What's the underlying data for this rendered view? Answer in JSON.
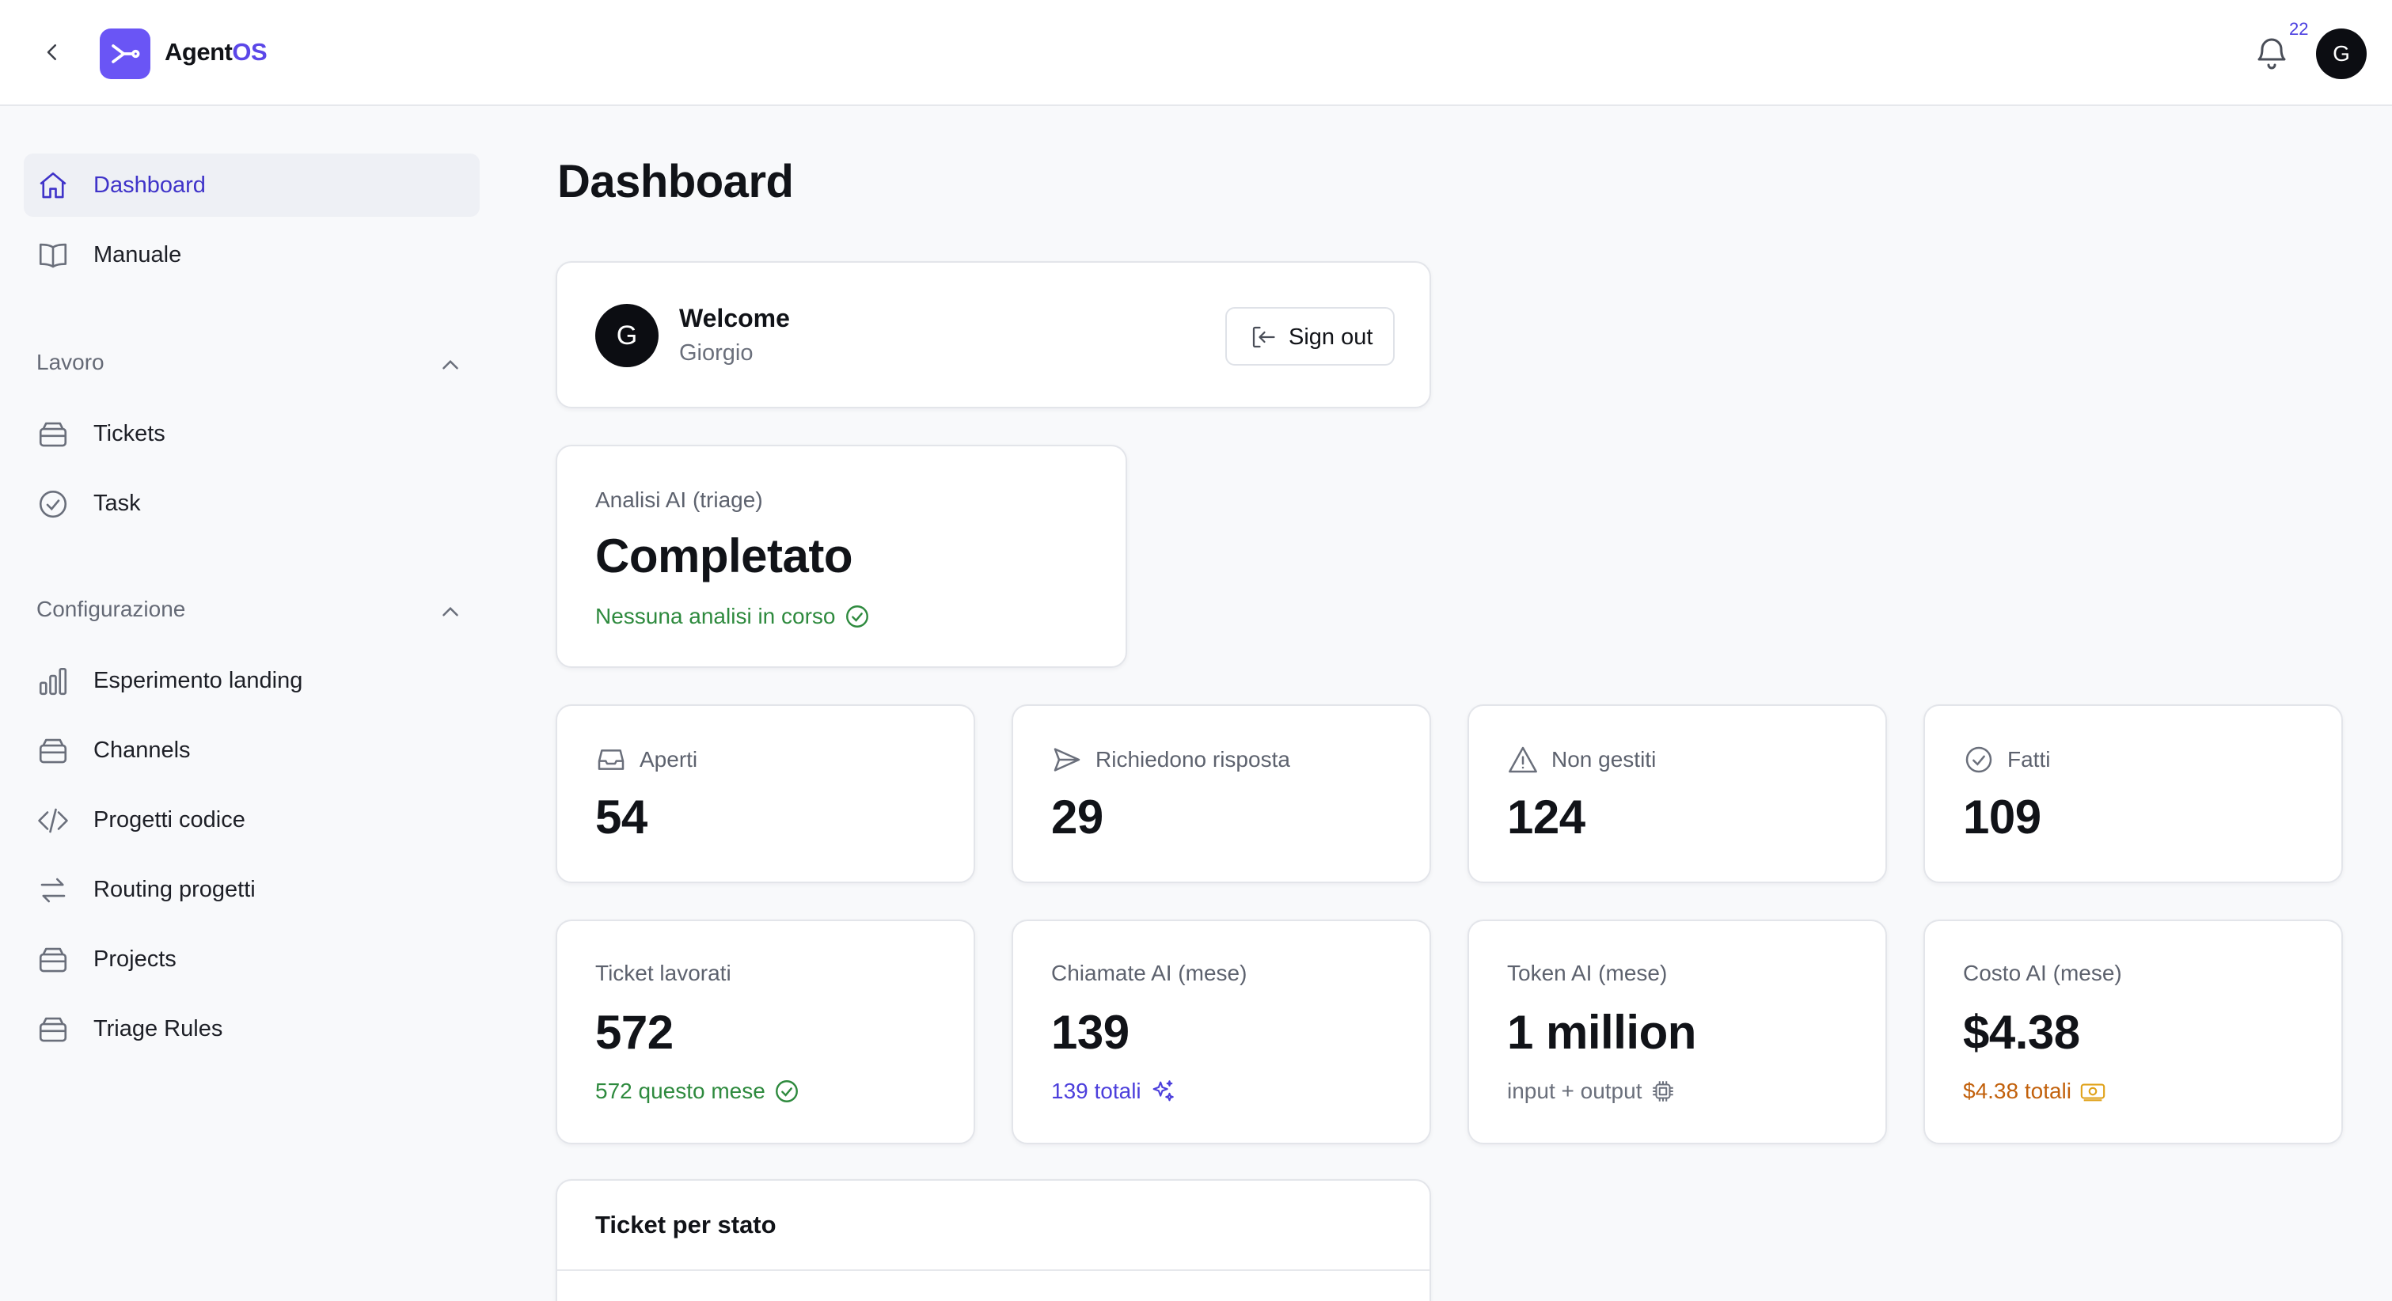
{
  "app": {
    "name_main": "Agent",
    "name_accent": "OS",
    "notifications_count": "22",
    "user_initial": "G"
  },
  "sidebar": {
    "top_items": [
      {
        "label": "Dashboard",
        "icon": "home-icon",
        "active": true
      },
      {
        "label": "Manuale",
        "icon": "book-icon",
        "active": false
      }
    ],
    "sections": [
      {
        "title": "Lavoro",
        "items": [
          {
            "label": "Tickets",
            "icon": "inbox-icon"
          },
          {
            "label": "Task",
            "icon": "check-circle-icon"
          }
        ]
      },
      {
        "title": "Configurazione",
        "items": [
          {
            "label": "Esperimento landing",
            "icon": "bar-chart-icon"
          },
          {
            "label": "Channels",
            "icon": "inbox-icon"
          },
          {
            "label": "Progetti codice",
            "icon": "code-icon"
          },
          {
            "label": "Routing progetti",
            "icon": "arrows-exchange-icon"
          },
          {
            "label": "Projects",
            "icon": "inbox-icon"
          },
          {
            "label": "Triage Rules",
            "icon": "inbox-icon"
          }
        ]
      }
    ]
  },
  "main": {
    "title": "Dashboard",
    "welcome": {
      "initial": "G",
      "title": "Welcome",
      "name": "Giorgio",
      "signout_label": "Sign out"
    },
    "triage": {
      "label": "Analisi AI (triage)",
      "value": "Completato",
      "status": "Nessuna analisi in corso"
    },
    "stats": [
      {
        "label": "Aperti",
        "value": "54",
        "icon": "inbox-tray-icon"
      },
      {
        "label": "Richiedono risposta",
        "value": "29",
        "icon": "send-icon"
      },
      {
        "label": "Non gestiti",
        "value": "124",
        "icon": "warning-icon"
      },
      {
        "label": "Fatti",
        "value": "109",
        "icon": "check-circle-icon"
      }
    ],
    "metrics": [
      {
        "label": "Ticket lavorati",
        "value": "572",
        "sub": "572 questo mese",
        "sub_color": "#2e8a3e",
        "icon": "check-circle-icon"
      },
      {
        "label": "Chiamate AI (mese)",
        "value": "139",
        "sub": "139 totali",
        "sub_color": "#4c3fdc",
        "icon": "sparkles-icon"
      },
      {
        "label": "Token AI (mese)",
        "value": "1 million",
        "sub": "input + output",
        "sub_color": "#6a6f7b",
        "icon": "chip-icon"
      },
      {
        "label": "Costo AI (mese)",
        "value": "$4.38",
        "sub": "$4.38 totali",
        "sub_color": "#c2610c",
        "icon": "money-icon"
      }
    ],
    "tickets_by_status": {
      "title": "Ticket per stato"
    }
  },
  "colors": {
    "accent": "#6a55f5",
    "active_text": "#3f33c9",
    "success": "#2e8a3e",
    "warning": "#c2610c"
  }
}
